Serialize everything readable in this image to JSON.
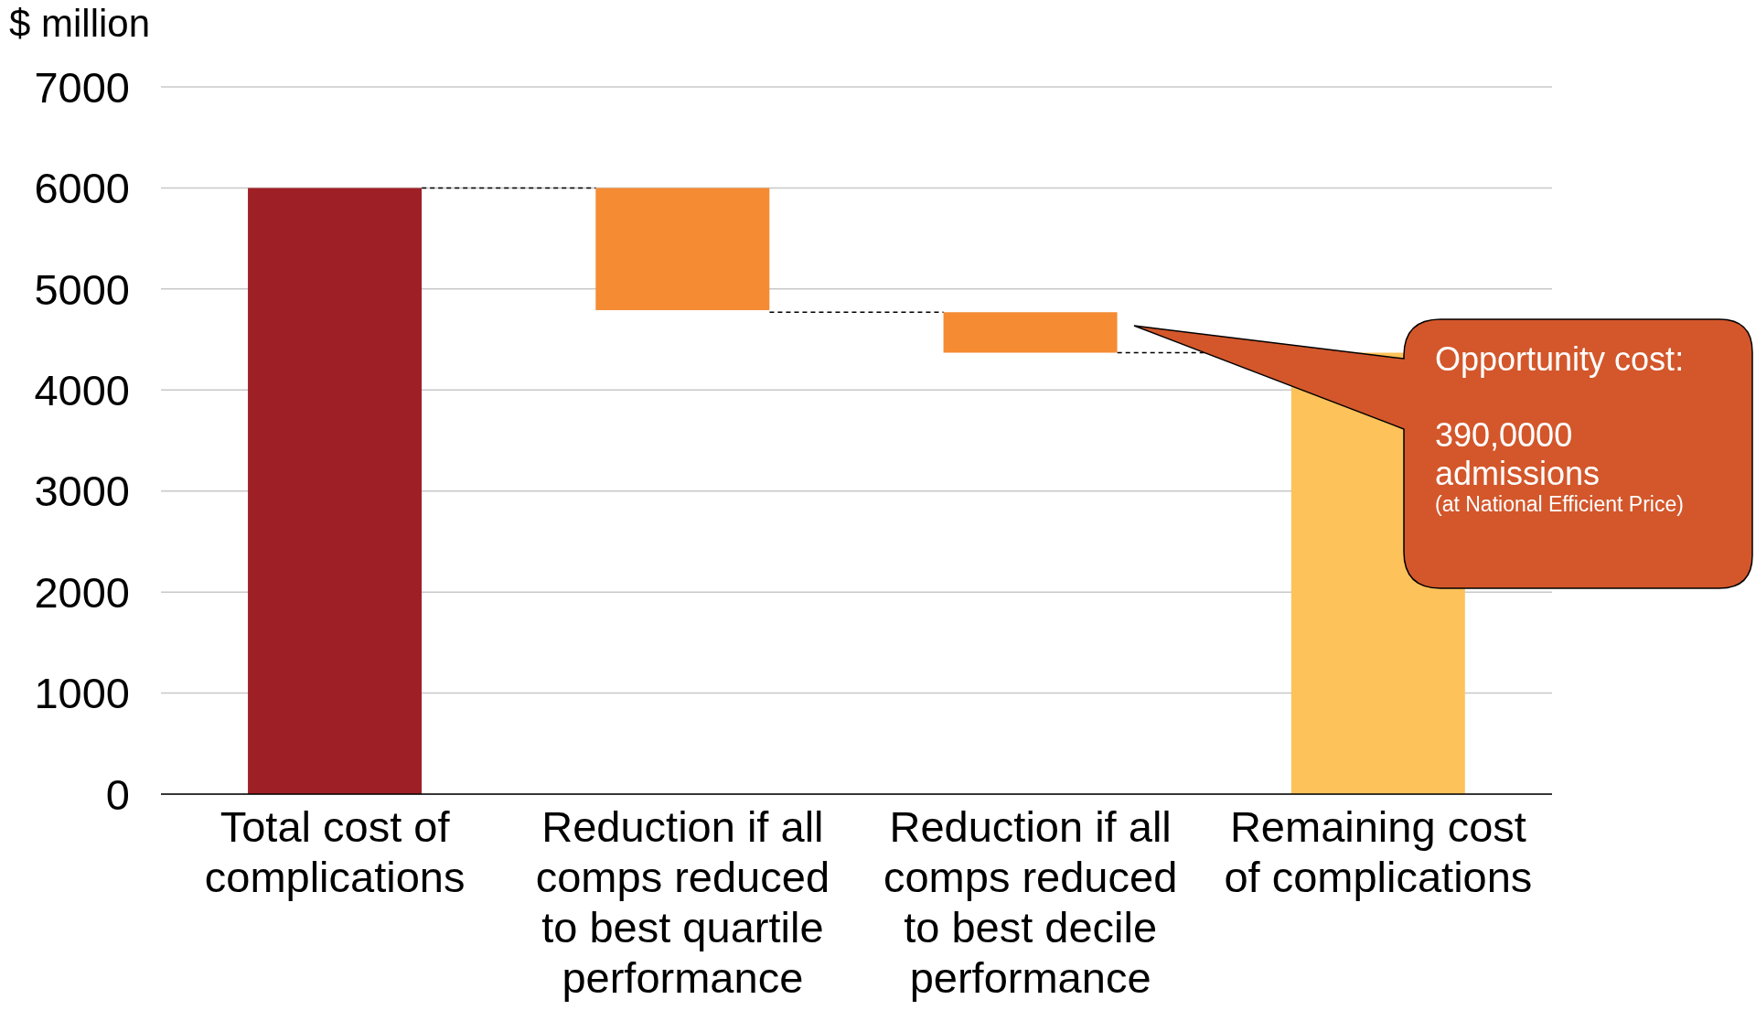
{
  "chart_data": {
    "type": "bar",
    "ylabel": "$ million",
    "categories": [
      "Total cost of complications",
      "Reduction if all comps reduced to best quartile performance",
      "Reduction if all comps reduced to best decile performance",
      "Remaining cost of complications"
    ],
    "values": [
      6000,
      1210,
      400,
      4370
    ],
    "base": [
      0,
      4790,
      4370,
      0
    ],
    "colors": [
      "#9e2026",
      "#f58b33",
      "#f58b33",
      "#fdc25a"
    ],
    "ylim": [
      0,
      7000
    ],
    "yticks": [
      0,
      1000,
      2000,
      3000,
      4000,
      5000,
      6000,
      7000
    ],
    "grid": "y",
    "annotations": [
      "Opportunity cost:",
      "390,0000 admissions",
      "(at National Efficient Price)"
    ]
  }
}
